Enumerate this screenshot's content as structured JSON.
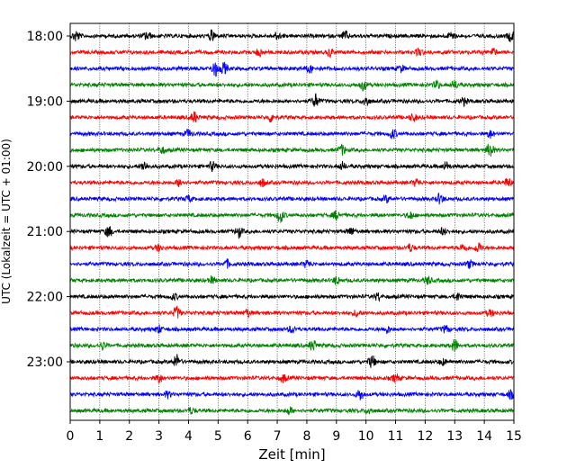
{
  "chart_data": {
    "type": "line",
    "title": "",
    "xlabel": "Zeit  [min]",
    "ylabel": "UTC (Lokalzeit = UTC + 01:00)",
    "xlim": [
      0,
      15
    ],
    "x_ticks": [
      "0",
      "1",
      "2",
      "3",
      "4",
      "5",
      "6",
      "7",
      "8",
      "9",
      "10",
      "11",
      "12",
      "13",
      "14",
      "15"
    ],
    "y_ticks": [
      {
        "label": "18:00",
        "trace": 0
      },
      {
        "label": "19:00",
        "trace": 4
      },
      {
        "label": "20:00",
        "trace": 8
      },
      {
        "label": "21:00",
        "trace": 12
      },
      {
        "label": "22:00",
        "trace": 16
      },
      {
        "label": "23:00",
        "trace": 20
      }
    ],
    "trace_interval_min": 15,
    "trace_count": 24,
    "grid": {
      "x": true,
      "style": "dotted"
    },
    "color_cycle": [
      "#000000",
      "#ff0000",
      "#0000ff",
      "#008000"
    ],
    "bursts": [
      [
        [
          0.2,
          0.9
        ],
        [
          2.6,
          0.7
        ],
        [
          4.8,
          0.9
        ],
        [
          7.0,
          0.6
        ],
        [
          9.3,
          0.7
        ],
        [
          12.9,
          0.7
        ],
        [
          14.9,
          0.8
        ]
      ],
      [
        [
          6.4,
          0.6
        ],
        [
          8.8,
          0.6
        ],
        [
          11.8,
          0.6
        ],
        [
          14.3,
          0.6
        ]
      ],
      [
        [
          4.9,
          1.2
        ],
        [
          5.2,
          0.9
        ],
        [
          8.1,
          0.6
        ],
        [
          11.2,
          0.5
        ]
      ],
      [
        [
          9.9,
          0.8
        ],
        [
          12.4,
          0.6
        ],
        [
          13.0,
          0.6
        ]
      ],
      [
        [
          8.3,
          1.1
        ],
        [
          10.0,
          0.8
        ],
        [
          13.3,
          0.6
        ]
      ],
      [
        [
          4.2,
          0.9
        ],
        [
          6.8,
          0.7
        ],
        [
          11.6,
          0.6
        ]
      ],
      [
        [
          4.0,
          0.6
        ],
        [
          10.9,
          0.8
        ],
        [
          14.2,
          0.6
        ]
      ],
      [
        [
          3.1,
          0.5
        ],
        [
          9.2,
          0.8
        ],
        [
          14.2,
          1.3
        ]
      ],
      [
        [
          2.5,
          0.8
        ],
        [
          4.8,
          0.7
        ],
        [
          9.2,
          0.6
        ],
        [
          12.7,
          0.7
        ]
      ],
      [
        [
          3.7,
          0.6
        ],
        [
          6.5,
          0.6
        ],
        [
          11.7,
          0.6
        ],
        [
          14.8,
          0.7
        ]
      ],
      [
        [
          4.0,
          0.5
        ],
        [
          10.7,
          0.5
        ],
        [
          12.5,
          0.8
        ]
      ],
      [
        [
          7.1,
          1.2
        ],
        [
          9.0,
          0.7
        ],
        [
          11.5,
          0.6
        ]
      ],
      [
        [
          1.3,
          0.9
        ],
        [
          5.7,
          0.9
        ],
        [
          9.5,
          0.6
        ],
        [
          12.6,
          0.6
        ]
      ],
      [
        [
          3.0,
          0.5
        ],
        [
          11.5,
          0.6
        ],
        [
          13.3,
          0.6
        ],
        [
          13.8,
          0.8
        ]
      ],
      [
        [
          5.3,
          0.6
        ],
        [
          8.0,
          0.6
        ],
        [
          13.5,
          0.6
        ]
      ],
      [
        [
          4.8,
          0.5
        ],
        [
          9.0,
          0.6
        ],
        [
          12.1,
          0.6
        ]
      ],
      [
        [
          3.5,
          0.5
        ],
        [
          10.4,
          0.6
        ],
        [
          13.1,
          0.6
        ]
      ],
      [
        [
          3.6,
          1.0
        ],
        [
          6.0,
          0.6
        ],
        [
          9.7,
          0.6
        ],
        [
          14.2,
          0.5
        ]
      ],
      [
        [
          3.0,
          0.6
        ],
        [
          7.5,
          0.6
        ],
        [
          10.7,
          0.6
        ],
        [
          12.7,
          0.6
        ]
      ],
      [
        [
          1.1,
          0.6
        ],
        [
          8.2,
          0.9
        ],
        [
          13.0,
          1.0
        ]
      ],
      [
        [
          3.6,
          1.1
        ],
        [
          10.2,
          1.0
        ],
        [
          12.6,
          0.5
        ]
      ],
      [
        [
          3.0,
          0.7
        ],
        [
          7.2,
          0.6
        ],
        [
          11.0,
          0.6
        ]
      ],
      [
        [
          3.3,
          0.5
        ],
        [
          9.8,
          0.9
        ],
        [
          14.9,
          0.6
        ]
      ],
      [
        [
          4.1,
          0.5
        ],
        [
          7.4,
          0.6
        ],
        [
          10.1,
          0.5
        ]
      ]
    ]
  }
}
